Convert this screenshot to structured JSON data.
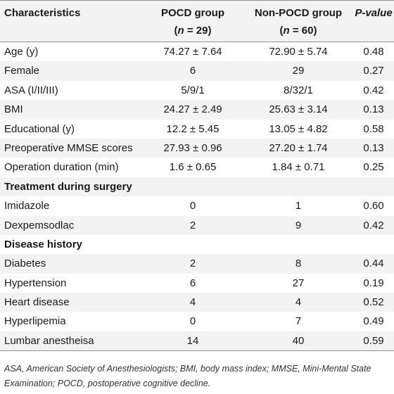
{
  "header": {
    "col0": "Characteristics",
    "col1_line1": "POCD group",
    "col1_line2": "(n = 29)",
    "col2_line1": "Non-POCD group",
    "col2_line2": "(n = 60)",
    "col3": "P-value"
  },
  "rows": [
    {
      "type": "data",
      "label": "Age (y)",
      "pocd": "74.27 ± 7.64",
      "non_pocd": "72.90 ± 5.74",
      "p": "0.48"
    },
    {
      "type": "data",
      "label": "Female",
      "pocd": "6",
      "non_pocd": "29",
      "p": "0.27"
    },
    {
      "type": "data",
      "label": "ASA (I/II/III)",
      "pocd": "5/9/1",
      "non_pocd": "8/32/1",
      "p": "0.42"
    },
    {
      "type": "data",
      "label": "BMI",
      "pocd": "24.27 ± 2.49",
      "non_pocd": "25.63 ± 3.14",
      "p": "0.13"
    },
    {
      "type": "data",
      "label": "Educational (y)",
      "pocd": "12.2 ± 5.45",
      "non_pocd": "13.05 ± 4.82",
      "p": "0.58"
    },
    {
      "type": "data",
      "label": "Preoperative MMSE scores",
      "pocd": "27.93 ± 0.96",
      "non_pocd": "27.20 ± 1.74",
      "p": "0.13"
    },
    {
      "type": "data",
      "label": "Operation duration (min)",
      "pocd": "1.6 ± 0.65",
      "non_pocd": "1.84 ± 0.71",
      "p": "0.25"
    },
    {
      "type": "section",
      "label": "Treatment during surgery"
    },
    {
      "type": "data",
      "label": "Imidazole",
      "pocd": "0",
      "non_pocd": "1",
      "p": "0.60"
    },
    {
      "type": "data",
      "label": "Dexpemsodlac",
      "pocd": "2",
      "non_pocd": "9",
      "p": "0.42"
    },
    {
      "type": "section",
      "label": "Disease history"
    },
    {
      "type": "data",
      "label": "Diabetes",
      "pocd": "2",
      "non_pocd": "8",
      "p": "0.44"
    },
    {
      "type": "data",
      "label": "Hypertension",
      "pocd": "6",
      "non_pocd": "27",
      "p": "0.19"
    },
    {
      "type": "data",
      "label": "Heart disease",
      "pocd": "4",
      "non_pocd": "4",
      "p": "0.52"
    },
    {
      "type": "data",
      "label": "Hyperlipemia",
      "pocd": "0",
      "non_pocd": "7",
      "p": "0.49"
    },
    {
      "type": "data",
      "label": "Lumbar anestheisa",
      "pocd": "14",
      "non_pocd": "40",
      "p": "0.59"
    }
  ],
  "footnote": "ASA, American Society of Anesthesiologists; BMI, body mass index; MMSE, Mini-Mental State Examination; POCD, postoperative cognitive decline."
}
